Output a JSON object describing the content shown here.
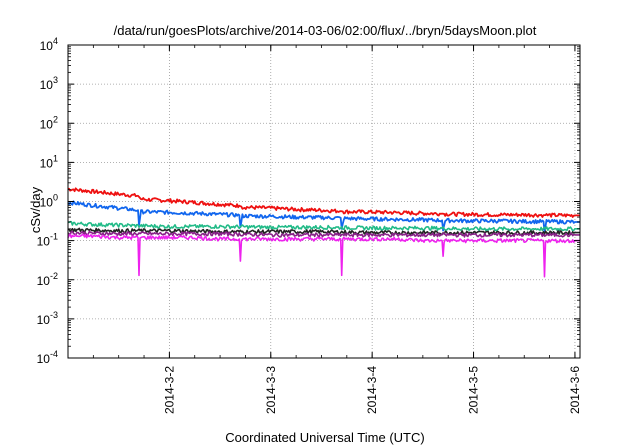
{
  "chart_data": {
    "type": "line",
    "title": "/data/run/goesPlots/archive/2014-03-06/02:00/flux/../bryn/5daysMoon.plot",
    "xlabel": "Coordinated Universal Time (UTC)",
    "ylabel": "cSv/day",
    "yscale": "log",
    "ylim": [
      0.0001,
      10000
    ],
    "xlim": [
      0.0,
      5.05
    ],
    "grid": true,
    "legend": "none",
    "y_ticks": [
      {
        "value": 0.0001,
        "base": "10",
        "exp": "-4"
      },
      {
        "value": 0.001,
        "base": "10",
        "exp": "-3"
      },
      {
        "value": 0.01,
        "base": "10",
        "exp": "-2"
      },
      {
        "value": 0.1,
        "base": "10",
        "exp": "-1"
      },
      {
        "value": 1,
        "base": "10",
        "exp": "0"
      },
      {
        "value": 10,
        "base": "10",
        "exp": "1"
      },
      {
        "value": 100,
        "base": "10",
        "exp": "2"
      },
      {
        "value": 1000,
        "base": "10",
        "exp": "3"
      },
      {
        "value": 10000,
        "base": "10",
        "exp": "4"
      }
    ],
    "x_ticks": [
      {
        "value": 1.0,
        "label": "2014-3-2"
      },
      {
        "value": 2.0,
        "label": "2014-3-3"
      },
      {
        "value": 3.0,
        "label": "2014-3-4"
      },
      {
        "value": 4.0,
        "label": "2014-3-5"
      },
      {
        "value": 5.0,
        "label": "2014-3-6"
      }
    ],
    "dips": [
      0.7,
      1.7,
      2.7,
      3.7,
      4.7
    ],
    "series": [
      {
        "color": "#ee1111",
        "x": [
          0.0,
          0.25,
          0.5,
          0.69,
          0.72,
          1.0,
          1.25,
          1.5,
          1.69,
          1.72,
          2.0,
          2.25,
          2.5,
          2.69,
          2.72,
          3.0,
          3.25,
          3.5,
          3.69,
          3.72,
          4.0,
          4.25,
          4.5,
          4.69,
          4.72,
          5.0,
          5.05
        ],
        "y": [
          2.1,
          1.8,
          1.55,
          1.4,
          1.15,
          1.05,
          0.95,
          0.85,
          0.78,
          0.72,
          0.68,
          0.63,
          0.6,
          0.57,
          0.55,
          0.54,
          0.52,
          0.5,
          0.49,
          0.48,
          0.47,
          0.46,
          0.46,
          0.45,
          0.45,
          0.44,
          0.44
        ]
      },
      {
        "color": "#1166ee",
        "x": [
          0.0,
          0.25,
          0.5,
          0.69,
          0.7,
          0.72,
          1.0,
          1.25,
          1.5,
          1.69,
          1.7,
          1.72,
          2.0,
          2.25,
          2.5,
          2.69,
          2.7,
          2.72,
          3.0,
          3.25,
          3.5,
          3.69,
          3.7,
          3.72,
          4.0,
          4.25,
          4.5,
          4.69,
          4.7,
          4.72,
          5.0,
          5.05
        ],
        "y": [
          0.95,
          0.8,
          0.68,
          0.6,
          0.25,
          0.55,
          0.53,
          0.5,
          0.47,
          0.45,
          0.22,
          0.43,
          0.42,
          0.4,
          0.39,
          0.38,
          0.2,
          0.37,
          0.36,
          0.35,
          0.34,
          0.33,
          0.18,
          0.33,
          0.32,
          0.32,
          0.31,
          0.31,
          0.17,
          0.31,
          0.3,
          0.3
        ]
      },
      {
        "color": "#22bb88",
        "x": [
          0.0,
          0.25,
          0.5,
          0.7,
          1.0,
          1.5,
          2.0,
          2.5,
          3.0,
          3.5,
          4.0,
          4.5,
          5.0,
          5.05
        ],
        "y": [
          0.28,
          0.26,
          0.25,
          0.24,
          0.23,
          0.23,
          0.22,
          0.22,
          0.21,
          0.21,
          0.2,
          0.2,
          0.2,
          0.2
        ]
      },
      {
        "color": "#222222",
        "x": [
          0.0,
          0.5,
          1.0,
          1.5,
          2.0,
          2.5,
          3.0,
          3.5,
          4.0,
          4.5,
          5.0,
          5.05
        ],
        "y": [
          0.19,
          0.18,
          0.18,
          0.17,
          0.17,
          0.17,
          0.16,
          0.16,
          0.16,
          0.16,
          0.16,
          0.16
        ]
      },
      {
        "color": "#882288",
        "x": [
          0.0,
          0.5,
          1.0,
          1.5,
          2.0,
          2.5,
          3.0,
          3.5,
          4.0,
          4.5,
          5.0,
          5.05
        ],
        "y": [
          0.16,
          0.15,
          0.15,
          0.15,
          0.14,
          0.14,
          0.14,
          0.14,
          0.14,
          0.14,
          0.14,
          0.14
        ]
      },
      {
        "color": "#ee22ee",
        "x": [
          0.0,
          0.25,
          0.5,
          0.69,
          0.7,
          0.71,
          1.0,
          1.25,
          1.5,
          1.69,
          1.7,
          1.71,
          2.0,
          2.25,
          2.5,
          2.69,
          2.7,
          2.71,
          3.0,
          3.25,
          3.5,
          3.69,
          3.7,
          3.71,
          4.0,
          4.25,
          4.5,
          4.69,
          4.7,
          4.71,
          5.0,
          5.05
        ],
        "y": [
          0.13,
          0.13,
          0.12,
          0.12,
          0.013,
          0.12,
          0.12,
          0.12,
          0.11,
          0.11,
          0.03,
          0.11,
          0.11,
          0.11,
          0.11,
          0.11,
          0.013,
          0.11,
          0.11,
          0.11,
          0.1,
          0.1,
          0.04,
          0.1,
          0.1,
          0.1,
          0.1,
          0.1,
          0.012,
          0.1,
          0.1,
          0.1
        ]
      }
    ]
  }
}
